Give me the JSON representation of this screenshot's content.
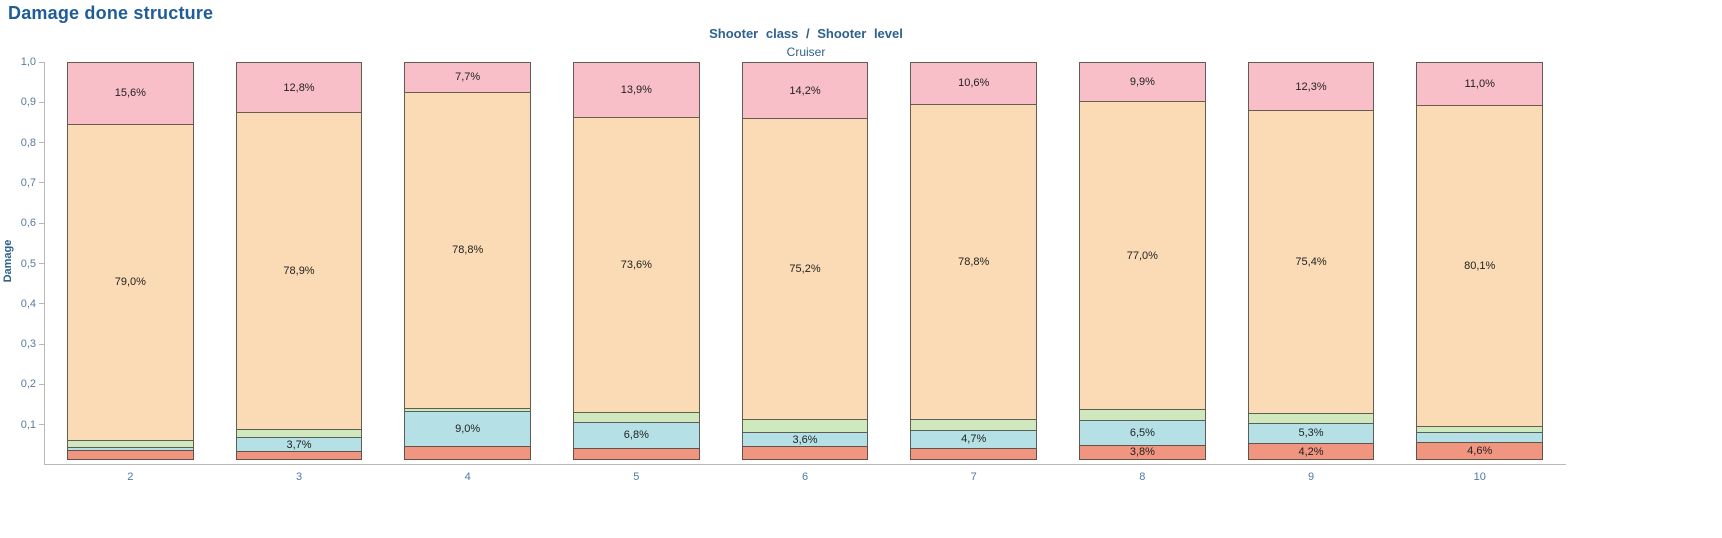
{
  "title": "Damage done structure",
  "header": {
    "line1": "Shooter class / Shooter level",
    "line2": "Cruiser"
  },
  "y_axis": {
    "label": "Damage",
    "ticks": [
      "1,0",
      "0,9",
      "0,8",
      "0,7",
      "0,6",
      "0,5",
      "0,4",
      "0,3",
      "0,2",
      "0,1"
    ]
  },
  "x_axis": {
    "label": "Shooter level"
  },
  "colors": {
    "title_blue": "#1f5c99",
    "header_blue": "#2e618f",
    "tick_blue": "#4e79a7",
    "axis_gray": "#b9b9b9",
    "segment_border": "#4b463e",
    "pink": "#f8bfc8",
    "peach": "#fbdbb5",
    "green": "#cfe8bd",
    "cyan": "#b5e1e6",
    "salmon": "#f0957f"
  },
  "chart_data": {
    "type": "bar",
    "stacked": true,
    "normalized_percent": true,
    "title": "Damage done structure",
    "subtitle": "Shooter class / Shooter level — Cruiser",
    "xlabel": "Shooter level",
    "ylabel": "Damage",
    "ylim": [
      0,
      1
    ],
    "grid": false,
    "legend": "none",
    "categories": [
      "2",
      "3",
      "4",
      "5",
      "6",
      "7",
      "8",
      "9",
      "10"
    ],
    "series": [
      {
        "name": "salmon",
        "color": "#f0957f",
        "values": [
          2.4,
          2.2,
          3.5,
          3.0,
          3.5,
          3.0,
          3.8,
          4.2,
          4.6
        ],
        "labels": [
          "",
          "",
          "",
          "",
          "",
          "",
          "3,8%",
          "4,2%",
          "4,6%"
        ]
      },
      {
        "name": "cyan",
        "color": "#b5e1e6",
        "values": [
          1.0,
          3.7,
          9.0,
          6.8,
          3.6,
          4.7,
          6.5,
          5.3,
          2.5
        ],
        "labels": [
          "",
          "3,7%",
          "9,0%",
          "6,8%",
          "3,6%",
          "4,7%",
          "6,5%",
          "5,3%",
          ""
        ]
      },
      {
        "name": "green",
        "color": "#cfe8bd",
        "values": [
          2.0,
          2.4,
          1.0,
          2.7,
          3.5,
          2.9,
          2.8,
          2.8,
          1.8
        ],
        "labels": [
          "",
          "",
          "",
          "",
          "",
          "",
          "",
          "",
          ""
        ]
      },
      {
        "name": "peach",
        "color": "#fbdbb5",
        "values": [
          79.0,
          78.9,
          78.8,
          73.6,
          75.2,
          78.8,
          77.0,
          75.4,
          80.1
        ],
        "labels": [
          "79,0%",
          "78,9%",
          "78,8%",
          "73,6%",
          "75,2%",
          "78,8%",
          "77,0%",
          "75,4%",
          "80,1%"
        ]
      },
      {
        "name": "pink",
        "color": "#f8bfc8",
        "values": [
          15.6,
          12.8,
          7.7,
          13.9,
          14.2,
          10.6,
          9.9,
          12.3,
          11.0
        ],
        "labels": [
          "15,6%",
          "12,8%",
          "7,7%",
          "13,9%",
          "14,2%",
          "10,6%",
          "9,9%",
          "12,3%",
          "11,0%"
        ]
      }
    ]
  }
}
